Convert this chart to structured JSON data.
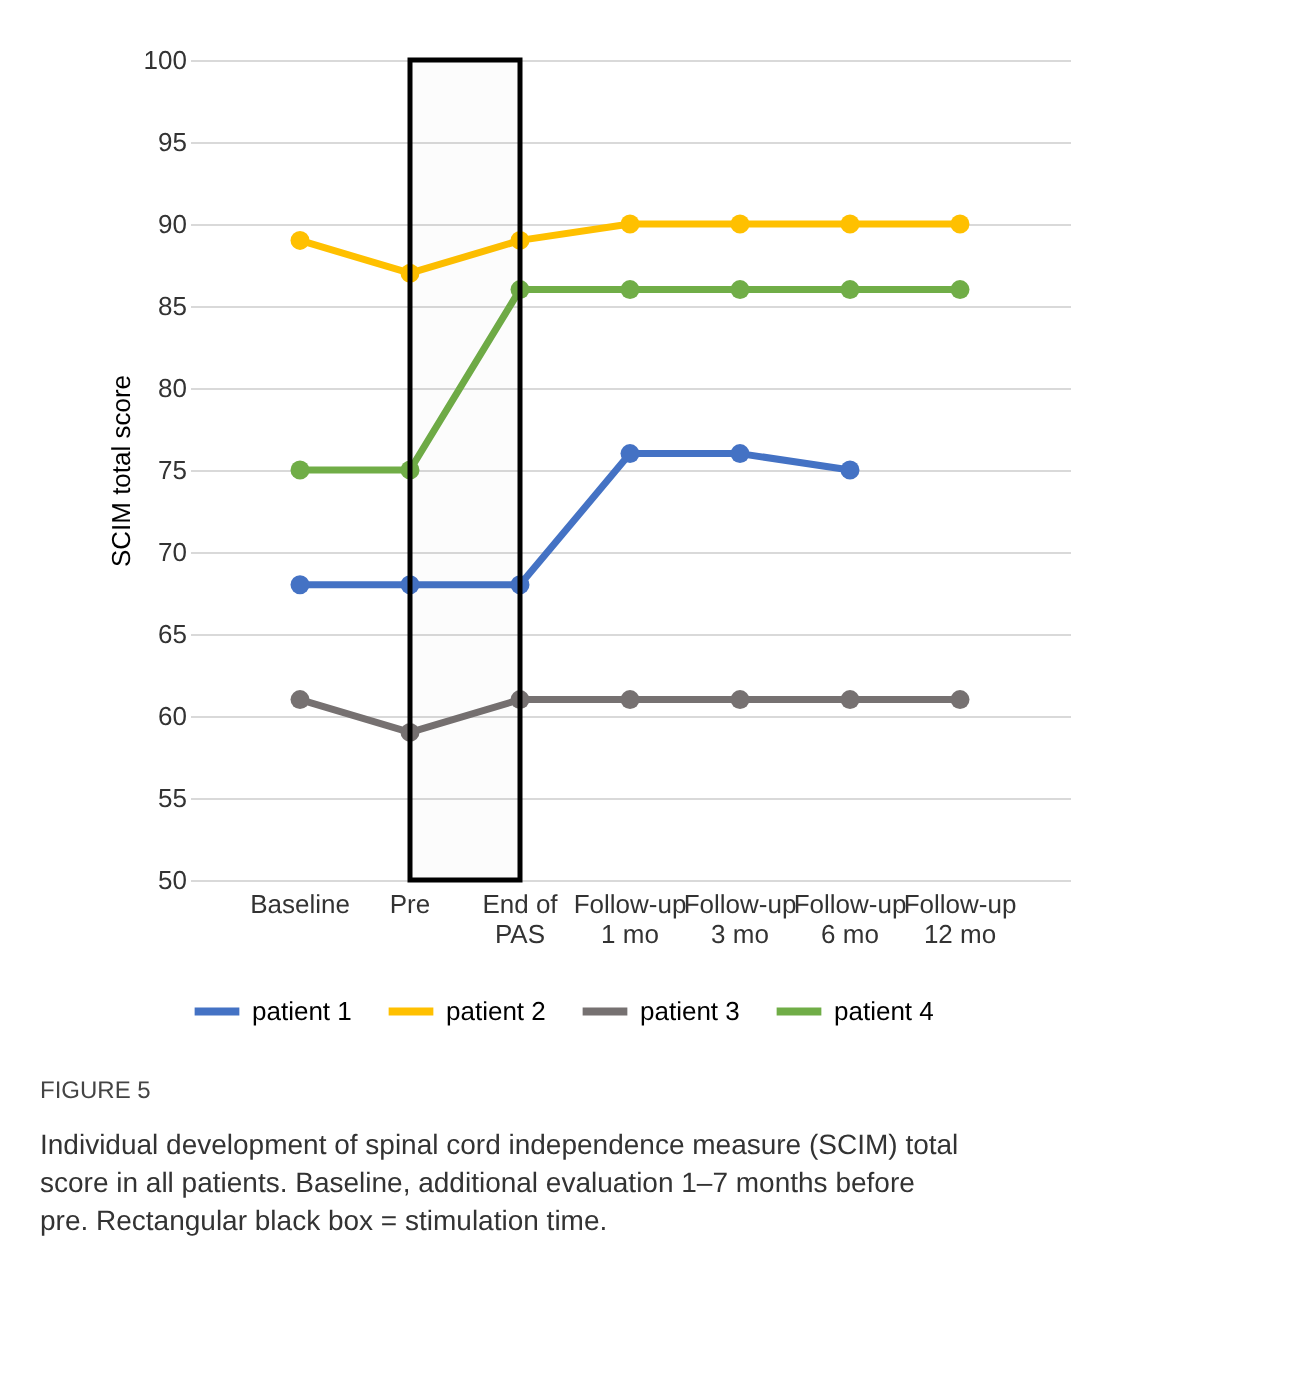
{
  "chart_data": {
    "type": "line",
    "categories": [
      "Baseline",
      "Pre",
      "End of PAS",
      "Follow-up 1 mo",
      "Follow-up 3 mo",
      "Follow-up 6 mo",
      "Follow-up 12 mo"
    ],
    "series": [
      {
        "name": "patient 1",
        "color": "#4472c4",
        "values": [
          68,
          68,
          68,
          76,
          76,
          75,
          null
        ]
      },
      {
        "name": "patient 2",
        "color": "#ffc000",
        "values": [
          89,
          87,
          89,
          90,
          90,
          90,
          90
        ]
      },
      {
        "name": "patient 3",
        "color": "#767171",
        "values": [
          61,
          59,
          61,
          61,
          61,
          61,
          61
        ]
      },
      {
        "name": "patient 4",
        "color": "#70ad47",
        "values": [
          75,
          75,
          86,
          86,
          86,
          86,
          86
        ]
      }
    ],
    "ylabel": "SCIM total score",
    "ylim": [
      50,
      100
    ],
    "yticks": [
      50,
      55,
      60,
      65,
      70,
      75,
      80,
      85,
      90,
      95,
      100
    ],
    "grid": "y",
    "legend": "bottom",
    "marker": "circle",
    "line_style": "solid",
    "bands": [
      {
        "axis": "x",
        "from": "Pre",
        "to": "End of PAS",
        "color": "#000000"
      }
    ],
    "annotations": [
      "FIGURE 5",
      "Individual development of spinal cord independence measure (SCIM) total score in all patients. Baseline, additional evaluation 1–7 months before pre. Rectangular black box = stimulation time."
    ]
  }
}
